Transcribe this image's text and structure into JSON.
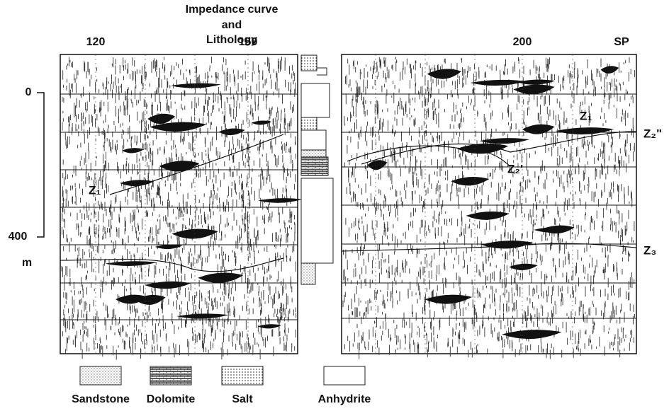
{
  "header": {
    "title_lines": [
      "Impedance curve",
      "and",
      "Lithology"
    ]
  },
  "shotpoints": [
    120,
    150,
    200,
    "SP"
  ],
  "depth_axis": {
    "labels": [
      0,
      400
    ],
    "unit": "m"
  },
  "horizons": [
    "Z₁",
    "Z₁",
    "Z₂\"",
    "Z₂'",
    "Z₃"
  ],
  "legend": [
    "Sandstone",
    "Dolomite",
    "Salt",
    "Anhydrite"
  ]
}
